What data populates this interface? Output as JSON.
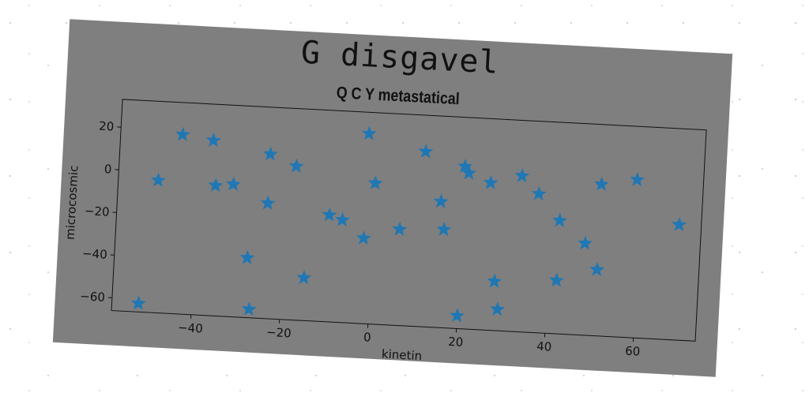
{
  "chart_data": {
    "type": "scatter",
    "title": "G disgavel",
    "subtitle": "Q C Y metastatical",
    "xlabel": "kinetin",
    "ylabel": "microcosmic",
    "xlim": [
      -58,
      74
    ],
    "ylim": [
      -66,
      33
    ],
    "xticks": [
      -40,
      -20,
      0,
      20,
      40,
      60
    ],
    "yticks": [
      20,
      0,
      -20,
      -40,
      -60
    ],
    "xtick_labels": [
      "−40",
      "−20",
      "0",
      "20",
      "40",
      "60"
    ],
    "ytick_labels": [
      "20",
      "0",
      "−20",
      "−40",
      "−60"
    ],
    "marker": "star",
    "marker_color": "#1f77b4",
    "background_color": "#7f7f7f",
    "grid": false,
    "points": [
      {
        "x": -52,
        "y": -62
      },
      {
        "x": -49,
        "y": -4
      },
      {
        "x": -44,
        "y": 18
      },
      {
        "x": -37,
        "y": 16
      },
      {
        "x": -36,
        "y": -5
      },
      {
        "x": -32,
        "y": -4
      },
      {
        "x": -28,
        "y": -38
      },
      {
        "x": -27,
        "y": -62
      },
      {
        "x": -24,
        "y": 11
      },
      {
        "x": -24,
        "y": -12
      },
      {
        "x": -18,
        "y": 6
      },
      {
        "x": -15,
        "y": -46
      },
      {
        "x": -10,
        "y": -16
      },
      {
        "x": -7,
        "y": -18
      },
      {
        "x": -2,
        "y": -26
      },
      {
        "x": -2,
        "y": 23
      },
      {
        "x": 0,
        "y": 0
      },
      {
        "x": 6,
        "y": -21
      },
      {
        "x": 11,
        "y": 16
      },
      {
        "x": 15,
        "y": -7
      },
      {
        "x": 16,
        "y": -20
      },
      {
        "x": 20,
        "y": 10
      },
      {
        "x": 20,
        "y": -60
      },
      {
        "x": 21,
        "y": 7
      },
      {
        "x": 26,
        "y": 3
      },
      {
        "x": 28,
        "y": -43
      },
      {
        "x": 29,
        "y": -56
      },
      {
        "x": 33,
        "y": 7
      },
      {
        "x": 37,
        "y": -1
      },
      {
        "x": 42,
        "y": -13
      },
      {
        "x": 42,
        "y": -41
      },
      {
        "x": 48,
        "y": -23
      },
      {
        "x": 51,
        "y": 5
      },
      {
        "x": 51,
        "y": -35
      },
      {
        "x": 59,
        "y": 8
      },
      {
        "x": 69,
        "y": -12
      }
    ]
  }
}
